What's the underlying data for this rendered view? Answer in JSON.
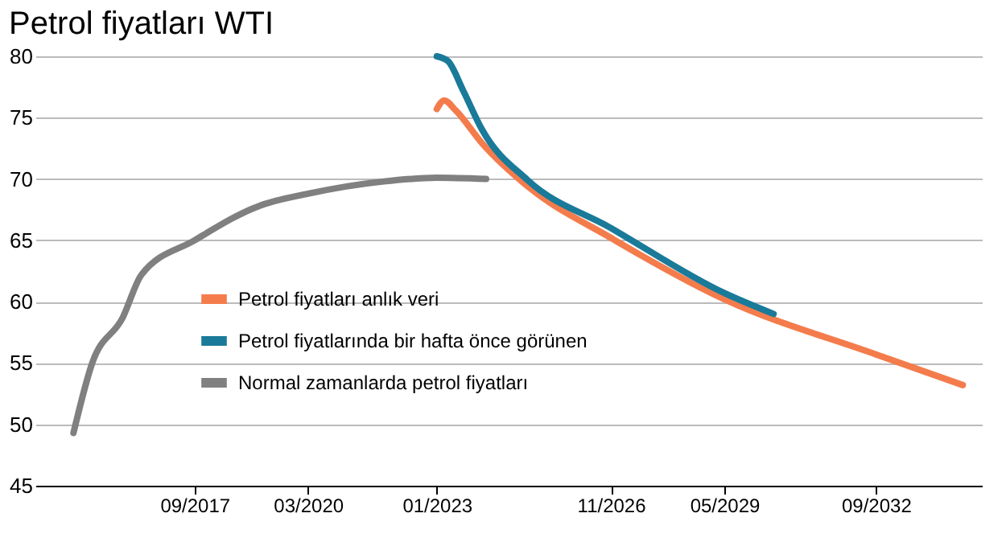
{
  "chart_data": {
    "type": "line",
    "title": "Petrol fiyatları WTI",
    "series": [
      {
        "name": "Petrol fiyatları anlık veri",
        "color": "#f47c4c",
        "x": [
          "2023-01",
          "2023-03",
          "2023-06",
          "2024-01",
          "2025-01",
          "2026-11",
          "2029-05",
          "2032-09",
          "2034-08"
        ],
        "values": [
          75.7,
          76.4,
          75.6,
          72.9,
          69.4,
          65.2,
          60.2,
          55.7,
          53.2
        ]
      },
      {
        "name": "Petrol fiyatlarında bir hafta önce görünen",
        "color": "#1a7a99",
        "x": [
          "2023-01",
          "2023-04",
          "2023-08",
          "2024-01",
          "2025-01",
          "2026-11",
          "2029-05",
          "2030-06"
        ],
        "values": [
          80.0,
          79.6,
          77.2,
          74.0,
          69.9,
          66.0,
          60.7,
          59.0
        ]
      },
      {
        "name": "Normal zamanlarda petrol fiyatları",
        "color": "#808080",
        "x": [
          "2015-01",
          "2015-06",
          "2016-02",
          "2016-07",
          "2017-09",
          "2019-02",
          "2020-03",
          "2021-11",
          "2023-01",
          "2024-02"
        ],
        "values": [
          49.3,
          55.0,
          58.7,
          62.2,
          65.0,
          67.8,
          68.8,
          69.8,
          70.1,
          70.0
        ]
      }
    ],
    "xlim": [
      "2014-03",
      "2035-01"
    ],
    "xticks": [
      {
        "value": "2017-09",
        "label": "09/2017"
      },
      {
        "value": "2020-03",
        "label": "03/2020"
      },
      {
        "value": "2023-01",
        "label": "01/2023"
      },
      {
        "value": "2026-11",
        "label": "11/2026"
      },
      {
        "value": "2029-05",
        "label": "05/2029"
      },
      {
        "value": "2032-09",
        "label": "09/2032"
      }
    ],
    "ylim": [
      45,
      80
    ],
    "yticks": [
      45,
      50,
      55,
      60,
      65,
      70,
      75,
      80
    ],
    "grid": "y",
    "legend": "left",
    "line_style": "solid",
    "marker": "none"
  }
}
